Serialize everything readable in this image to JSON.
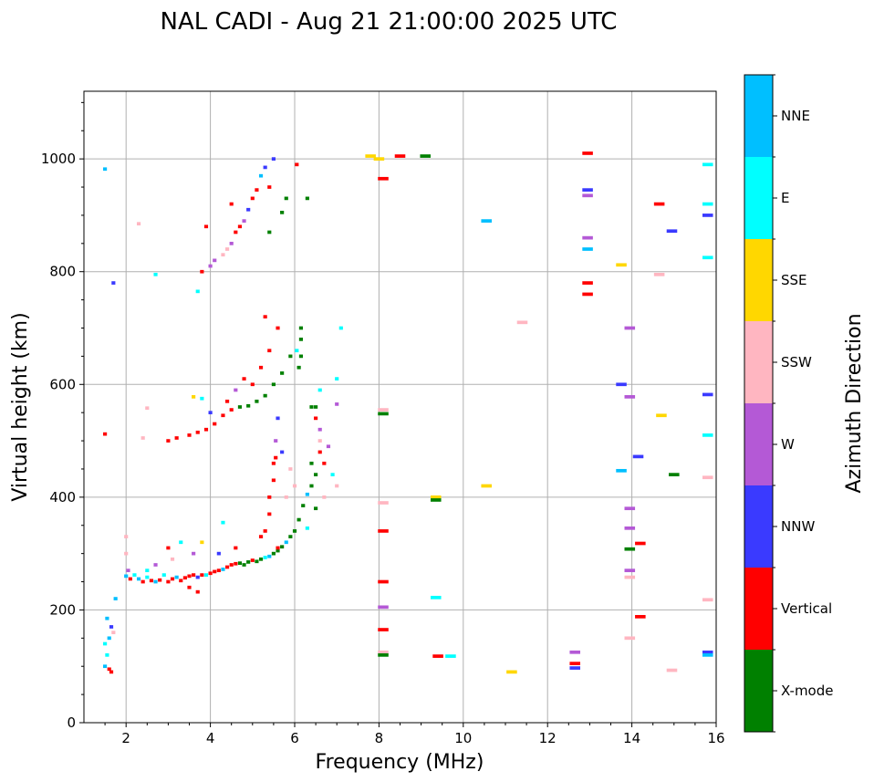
{
  "chart_data": {
    "type": "scatter",
    "title": "NAL CADI - Aug 21 21:00:00 2025 UTC",
    "xlabel": "Frequency (MHz)",
    "ylabel": "Virtual height (km)",
    "xlim": [
      1,
      16
    ],
    "ylim": [
      0,
      1120
    ],
    "xticks": [
      2,
      4,
      6,
      8,
      10,
      12,
      14,
      16
    ],
    "yticks": [
      0,
      200,
      400,
      600,
      800,
      1000
    ],
    "grid": true,
    "colorbar": {
      "label": "Azimuth Direction",
      "categories": [
        "X-mode",
        "Vertical",
        "NNW",
        "W",
        "SSW",
        "SSE",
        "E",
        "NNE"
      ],
      "colors": [
        "#008000",
        "#ff0000",
        "#3a3aff",
        "#b459d6",
        "#ffb6c1",
        "#ffd700",
        "#00ffff",
        "#00bfff"
      ]
    },
    "points_format": [
      "frequency_mhz",
      "height_km",
      "direction_index"
    ],
    "points": [
      [
        1.5,
        100,
        7
      ],
      [
        1.55,
        120,
        6
      ],
      [
        1.6,
        150,
        7
      ],
      [
        1.65,
        170,
        2
      ],
      [
        1.6,
        95,
        1
      ],
      [
        1.7,
        160,
        4
      ],
      [
        1.55,
        185,
        7
      ],
      [
        1.75,
        220,
        7
      ],
      [
        1.5,
        140,
        6
      ],
      [
        1.65,
        90,
        1
      ],
      [
        2.0,
        260,
        7
      ],
      [
        2.05,
        270,
        3
      ],
      [
        2.1,
        255,
        1
      ],
      [
        2.2,
        262,
        6
      ],
      [
        2.3,
        255,
        7
      ],
      [
        2.4,
        250,
        1
      ],
      [
        2.5,
        258,
        6
      ],
      [
        2.6,
        252,
        1
      ],
      [
        2.7,
        250,
        7
      ],
      [
        2.8,
        253,
        1
      ],
      [
        2.9,
        262,
        6
      ],
      [
        3.0,
        250,
        1
      ],
      [
        3.1,
        255,
        1
      ],
      [
        3.2,
        258,
        7
      ],
      [
        3.3,
        252,
        1
      ],
      [
        3.4,
        257,
        1
      ],
      [
        3.5,
        260,
        1
      ],
      [
        3.6,
        262,
        1
      ],
      [
        3.7,
        258,
        2
      ],
      [
        3.8,
        262,
        1
      ],
      [
        3.9,
        262,
        6
      ],
      [
        4.0,
        265,
        1
      ],
      [
        4.1,
        268,
        1
      ],
      [
        4.2,
        270,
        1
      ],
      [
        4.3,
        272,
        7
      ],
      [
        4.4,
        276,
        1
      ],
      [
        4.5,
        280,
        1
      ],
      [
        4.6,
        282,
        1
      ],
      [
        4.7,
        283,
        0
      ],
      [
        4.8,
        280,
        0
      ],
      [
        4.9,
        285,
        0
      ],
      [
        5.0,
        288,
        1
      ],
      [
        5.1,
        286,
        0
      ],
      [
        5.2,
        290,
        0
      ],
      [
        5.3,
        293,
        6
      ],
      [
        5.4,
        295,
        7
      ],
      [
        5.5,
        300,
        0
      ],
      [
        5.6,
        305,
        0
      ],
      [
        5.7,
        312,
        0
      ],
      [
        5.8,
        320,
        7
      ],
      [
        5.9,
        330,
        0
      ],
      [
        6.0,
        340,
        0
      ],
      [
        6.1,
        360,
        0
      ],
      [
        6.2,
        385,
        0
      ],
      [
        6.3,
        405,
        7
      ],
      [
        6.4,
        420,
        0
      ],
      [
        6.5,
        440,
        0
      ],
      [
        6.6,
        480,
        1
      ],
      [
        6.6,
        520,
        3
      ],
      [
        6.5,
        560,
        0
      ],
      [
        2.5,
        270,
        6
      ],
      [
        3.0,
        310,
        1
      ],
      [
        3.3,
        320,
        6
      ],
      [
        3.6,
        300,
        3
      ],
      [
        3.8,
        320,
        5
      ],
      [
        4.2,
        300,
        2
      ],
      [
        4.6,
        310,
        1
      ],
      [
        3.5,
        240,
        1
      ],
      [
        3.7,
        232,
        1
      ],
      [
        4.3,
        355,
        6
      ],
      [
        2.7,
        280,
        3
      ],
      [
        3.1,
        290,
        4
      ],
      [
        2.0,
        300,
        4
      ],
      [
        2.0,
        330,
        4
      ],
      [
        5.2,
        330,
        1
      ],
      [
        5.3,
        340,
        1
      ],
      [
        5.4,
        370,
        1
      ],
      [
        5.4,
        400,
        1
      ],
      [
        5.5,
        430,
        1
      ],
      [
        5.5,
        460,
        1
      ],
      [
        5.55,
        500,
        3
      ],
      [
        5.6,
        540,
        2
      ],
      [
        5.55,
        470,
        1
      ],
      [
        5.7,
        480,
        2
      ],
      [
        5.8,
        400,
        4
      ],
      [
        5.9,
        450,
        4
      ],
      [
        6.0,
        420,
        4
      ],
      [
        5.6,
        310,
        1
      ],
      [
        6.4,
        460,
        0
      ],
      [
        6.4,
        560,
        0
      ],
      [
        6.5,
        540,
        1
      ],
      [
        6.6,
        500,
        4
      ],
      [
        6.7,
        460,
        1
      ],
      [
        6.8,
        490,
        3
      ],
      [
        6.9,
        440,
        6
      ],
      [
        7.0,
        610,
        6
      ],
      [
        7.0,
        565,
        3
      ],
      [
        6.6,
        590,
        6
      ],
      [
        6.5,
        380,
        0
      ],
      [
        6.7,
        400,
        4
      ],
      [
        7.0,
        420,
        4
      ],
      [
        6.3,
        345,
        6
      ],
      [
        6.15,
        650,
        0
      ],
      [
        6.15,
        680,
        0
      ],
      [
        6.15,
        700,
        0
      ],
      [
        6.1,
        630,
        0
      ],
      [
        6.05,
        660,
        6
      ],
      [
        3.0,
        500,
        1
      ],
      [
        3.2,
        505,
        1
      ],
      [
        3.5,
        510,
        1
      ],
      [
        3.7,
        515,
        1
      ],
      [
        3.9,
        520,
        1
      ],
      [
        4.1,
        530,
        1
      ],
      [
        4.3,
        545,
        1
      ],
      [
        4.5,
        555,
        1
      ],
      [
        4.7,
        560,
        0
      ],
      [
        4.9,
        562,
        0
      ],
      [
        5.1,
        570,
        0
      ],
      [
        5.3,
        580,
        0
      ],
      [
        5.5,
        600,
        0
      ],
      [
        5.7,
        620,
        0
      ],
      [
        5.9,
        650,
        0
      ],
      [
        3.6,
        578,
        5
      ],
      [
        3.8,
        575,
        6
      ],
      [
        4.0,
        550,
        2
      ],
      [
        4.4,
        570,
        1
      ],
      [
        4.6,
        590,
        3
      ],
      [
        4.8,
        610,
        1
      ],
      [
        5.0,
        600,
        1
      ],
      [
        5.2,
        630,
        1
      ],
      [
        5.4,
        660,
        1
      ],
      [
        5.6,
        700,
        1
      ],
      [
        5.3,
        720,
        1
      ],
      [
        2.4,
        505,
        4
      ],
      [
        3.8,
        800,
        1
      ],
      [
        4.0,
        810,
        3
      ],
      [
        4.1,
        820,
        3
      ],
      [
        4.3,
        830,
        4
      ],
      [
        4.5,
        850,
        3
      ],
      [
        4.6,
        870,
        1
      ],
      [
        4.7,
        880,
        1
      ],
      [
        4.8,
        890,
        3
      ],
      [
        4.9,
        910,
        2
      ],
      [
        5.0,
        930,
        1
      ],
      [
        5.1,
        945,
        1
      ],
      [
        5.2,
        970,
        7
      ],
      [
        5.3,
        985,
        2
      ],
      [
        5.5,
        1000,
        2
      ],
      [
        3.9,
        880,
        1
      ],
      [
        4.5,
        920,
        1
      ],
      [
        5.4,
        950,
        1
      ],
      [
        5.7,
        905,
        0
      ],
      [
        5.8,
        930,
        0
      ],
      [
        6.05,
        990,
        1
      ],
      [
        6.3,
        930,
        0
      ],
      [
        3.7,
        765,
        6
      ],
      [
        4.4,
        840,
        4
      ],
      [
        5.4,
        870,
        0
      ],
      [
        7.8,
        1005,
        5
      ],
      [
        8.0,
        1000,
        5
      ],
      [
        8.5,
        1005,
        1
      ],
      [
        9.1,
        1005,
        0
      ],
      [
        8.1,
        965,
        1
      ],
      [
        8.1,
        555,
        4
      ],
      [
        8.1,
        548,
        0
      ],
      [
        8.1,
        390,
        4
      ],
      [
        8.1,
        340,
        1
      ],
      [
        8.1,
        250,
        1
      ],
      [
        8.1,
        205,
        3
      ],
      [
        8.1,
        165,
        1
      ],
      [
        8.1,
        125,
        4
      ],
      [
        8.1,
        120,
        0
      ],
      [
        9.35,
        400,
        5
      ],
      [
        9.35,
        395,
        0
      ],
      [
        9.35,
        222,
        6
      ],
      [
        9.4,
        118,
        1
      ],
      [
        9.7,
        118,
        6
      ],
      [
        10.55,
        420,
        5
      ],
      [
        10.55,
        890,
        7
      ],
      [
        11.15,
        90,
        5
      ],
      [
        11.4,
        710,
        4
      ],
      [
        12.65,
        125,
        3
      ],
      [
        12.65,
        105,
        1
      ],
      [
        12.65,
        97,
        2
      ],
      [
        12.95,
        1010,
        1
      ],
      [
        12.95,
        945,
        2
      ],
      [
        12.95,
        935,
        3
      ],
      [
        12.95,
        860,
        3
      ],
      [
        12.95,
        840,
        7
      ],
      [
        12.95,
        780,
        1
      ],
      [
        12.95,
        760,
        1
      ],
      [
        13.75,
        812,
        5
      ],
      [
        13.75,
        600,
        2
      ],
      [
        13.75,
        447,
        7
      ],
      [
        13.95,
        700,
        3
      ],
      [
        13.95,
        578,
        3
      ],
      [
        13.95,
        380,
        3
      ],
      [
        13.95,
        345,
        3
      ],
      [
        13.95,
        308,
        0
      ],
      [
        13.95,
        270,
        3
      ],
      [
        13.95,
        258,
        4
      ],
      [
        13.95,
        150,
        4
      ],
      [
        14.15,
        472,
        2
      ],
      [
        14.2,
        318,
        1
      ],
      [
        14.2,
        188,
        1
      ],
      [
        14.65,
        920,
        1
      ],
      [
        14.65,
        795,
        4
      ],
      [
        14.7,
        545,
        5
      ],
      [
        14.95,
        872,
        2
      ],
      [
        15.0,
        440,
        0
      ],
      [
        14.95,
        93,
        4
      ],
      [
        15.8,
        990,
        6
      ],
      [
        15.8,
        920,
        6
      ],
      [
        15.8,
        900,
        2
      ],
      [
        15.8,
        825,
        6
      ],
      [
        15.8,
        582,
        2
      ],
      [
        15.8,
        510,
        6
      ],
      [
        15.8,
        435,
        4
      ],
      [
        15.8,
        218,
        4
      ],
      [
        15.8,
        125,
        2
      ],
      [
        15.8,
        120,
        7
      ],
      [
        1.5,
        982,
        7
      ],
      [
        1.7,
        780,
        2
      ],
      [
        2.3,
        885,
        4
      ],
      [
        2.7,
        795,
        6
      ],
      [
        1.5,
        512,
        1
      ],
      [
        2.5,
        558,
        4
      ],
      [
        7.1,
        700,
        6
      ]
    ]
  }
}
